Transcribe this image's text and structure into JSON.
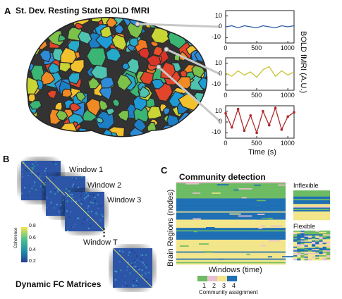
{
  "panelA": {
    "letter": "A",
    "title": "St. Dev. Resting State BOLD fMRI",
    "ylabel": "BOLD fMRI (A.U.)",
    "xlabel": "Time (s)"
  },
  "panelB": {
    "letter": "B",
    "windows": [
      "Window 1",
      "Window 2",
      "Window 3",
      "Window T"
    ],
    "ellipsis": "•\n•\n•",
    "colorbar_label": "Coherence",
    "colorbar_ticks": [
      "0.8",
      "0.6",
      "0.4",
      "0.2"
    ],
    "caption": "Dynamic FC Matrices"
  },
  "panelC": {
    "letter": "C",
    "title": "Community detection",
    "ylabel": "Brain Regions (nodes)",
    "xlabel": "Windows (time)",
    "inflexible": "Inflexible",
    "flexible": "Flexible",
    "community_ticks": [
      "1",
      "2",
      "3",
      "4"
    ],
    "community_label": "Community assignment",
    "community_colors": [
      "#6dbb63",
      "#e8bfd0",
      "#f2e58a",
      "#1f6fb5"
    ]
  },
  "chart_data": [
    {
      "type": "line",
      "series": [
        {
          "color": "#2b5aa8",
          "x": [
            0,
            100,
            200,
            300,
            400,
            500,
            600,
            700,
            800,
            900,
            1000,
            1100
          ],
          "values": [
            0,
            1,
            -1,
            1,
            0,
            -1,
            1,
            0,
            -1,
            1,
            0,
            1
          ]
        }
      ],
      "xticks": [
        "0",
        "500",
        "1000"
      ],
      "yticks": [
        "10",
        "0",
        "-10"
      ],
      "xlim": [
        0,
        1100
      ],
      "ylim": [
        -15,
        15
      ]
    },
    {
      "type": "line",
      "series": [
        {
          "color": "#c9c230",
          "x": [
            0,
            100,
            200,
            300,
            400,
            500,
            600,
            700,
            800,
            900,
            1000,
            1100
          ],
          "values": [
            1,
            -2,
            3,
            -1,
            2,
            -3,
            4,
            7,
            -2,
            3,
            -1,
            2
          ]
        }
      ],
      "xticks": [
        "0",
        "500",
        "1000"
      ],
      "yticks": [
        "10",
        "0",
        "-10"
      ],
      "xlim": [
        0,
        1100
      ],
      "ylim": [
        -15,
        15
      ]
    },
    {
      "type": "line",
      "series": [
        {
          "color": "#b02a2a",
          "x": [
            0,
            100,
            200,
            300,
            400,
            500,
            600,
            700,
            800,
            900,
            1000,
            1100
          ],
          "values": [
            8,
            -5,
            12,
            -8,
            6,
            -10,
            10,
            -3,
            13,
            -7,
            5,
            9
          ]
        }
      ],
      "xticks": [
        "0",
        "500",
        "1000"
      ],
      "yticks": [
        "10",
        "0",
        "-10"
      ],
      "xlim": [
        0,
        1100
      ],
      "ylim": [
        -15,
        15
      ]
    }
  ]
}
